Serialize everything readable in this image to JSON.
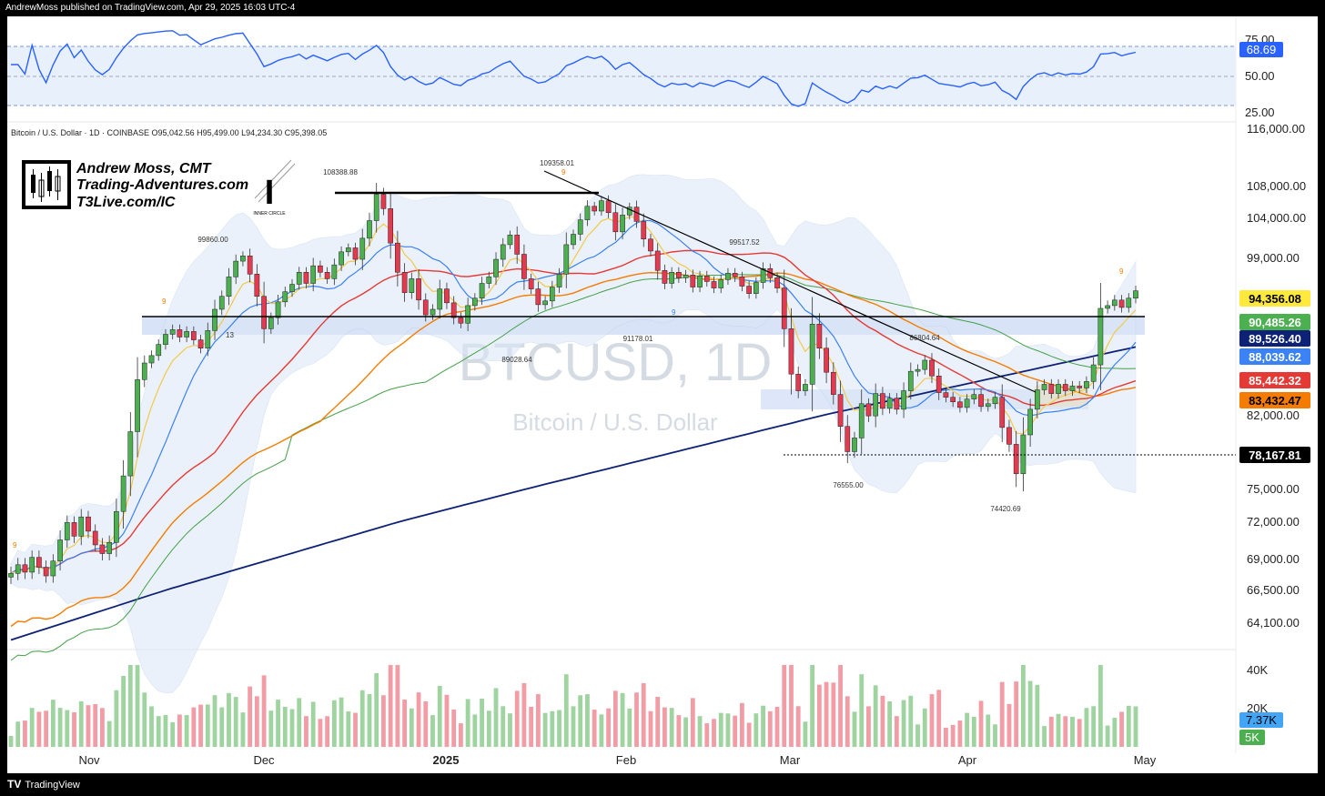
{
  "header": {
    "text": "AndrewMoss published on TradingView.com, Apr 29, 2025 16:03 UTC-4"
  },
  "footer": {
    "logo": "TV",
    "brand": "TradingView"
  },
  "branding": {
    "name": "Andrew Moss, CMT",
    "site": "Trading-Adventures.com",
    "site2": "T3Live.com/IC",
    "badge_letter": "I",
    "badge_text": "INNER CIRCLE"
  },
  "watermark": {
    "ticker": "BTCUSD, 1D",
    "name": "Bitcoin / U.S. Dollar"
  },
  "legend": {
    "text": "Bitcoin / U.S. Dollar · 1D · COINBASE   O95,042.56  H95,499.00  L94,234.30  C95,398.05"
  },
  "chart_data": {
    "type": "candlestick",
    "price_axis_ticks": [
      "116,000.00",
      "108,000.00",
      "104,000.00",
      "99,000.00",
      "82,000.00",
      "75,000.00",
      "72,000.00",
      "69,000.00",
      "66,500.00",
      "64,100.00"
    ],
    "rsi_axis_ticks": [
      "75.00",
      "50.00",
      "25.00"
    ],
    "volume_axis_ticks": [
      "40K",
      "20K"
    ],
    "x_labels": [
      "Nov",
      "Dec",
      "2025",
      "Feb",
      "Mar",
      "Apr",
      "May"
    ],
    "annotations": [
      "108388.88",
      "109358.01",
      "99860.00",
      "99517.52",
      "89028.64",
      "91178.01",
      "86804.64",
      "76555.00",
      "74420.69"
    ],
    "td_counts": [
      "9",
      "9",
      "9",
      "9",
      "13",
      "9",
      "9"
    ],
    "price_badges": [
      {
        "value": "94,356.08",
        "bg": "#ffe93d",
        "fg": "#000000"
      },
      {
        "value": "90,485.26",
        "bg": "#4caf50",
        "fg": "#ffffff"
      },
      {
        "value": "89,526.40",
        "bg": "#0d2275",
        "fg": "#ffffff"
      },
      {
        "value": "88,039.62",
        "bg": "#3b82f6",
        "fg": "#ffffff"
      },
      {
        "value": "85,442.32",
        "bg": "#e53935",
        "fg": "#ffffff"
      },
      {
        "value": "83,432.47",
        "bg": "#f57c00",
        "fg": "#000000"
      },
      {
        "value": "78,167.81",
        "bg": "#000000",
        "fg": "#ffffff"
      }
    ],
    "rsi_badge": {
      "value": "68.69",
      "bg": "#2962ff",
      "fg": "#ffffff"
    },
    "volume_badges": [
      {
        "value": "7.37K",
        "bg": "#42a5f5",
        "fg": "#000000"
      },
      {
        "value": "5K",
        "bg": "#4caf50",
        "fg": "#ffffff"
      }
    ],
    "colors": {
      "up": "#4caf50",
      "down": "#e53950",
      "ema8": "#f2c94c",
      "sma20": "#3b82f6",
      "sma50": "#e53935",
      "sma100": "#43a047",
      "sma200": "#f57c00",
      "sma_long": "#0d2275",
      "rsi": "#2962ff"
    },
    "series_close": [
      67800,
      68500,
      67900,
      69100,
      68300,
      67600,
      68800,
      70500,
      71900,
      70800,
      72400,
      71200,
      70100,
      69400,
      70300,
      72900,
      76200,
      80400,
      85800,
      87600,
      88400,
      89600,
      90700,
      91200,
      90400,
      91000,
      90100,
      89200,
      91100,
      93400,
      94800,
      96900,
      98600,
      99200,
      97200,
      94800,
      91300,
      92500,
      94200,
      95300,
      96100,
      97400,
      96200,
      98100,
      97400,
      96700,
      98200,
      99700,
      100200,
      98800,
      101400,
      103600,
      106900,
      105100,
      100800,
      97400,
      95200,
      96700,
      94400,
      92800,
      93400,
      95600,
      94100,
      92500,
      91900,
      93800,
      94600,
      96200,
      96900,
      98800,
      100600,
      101800,
      99400,
      96700,
      95600,
      93900,
      94300,
      95800,
      97200,
      100600,
      101900,
      103700,
      105400,
      104800,
      106100,
      104600,
      102200,
      104300,
      105300,
      103500,
      101300,
      99800,
      97600,
      96200,
      97400,
      96800,
      97100,
      95800,
      97000,
      96400,
      95700,
      96600,
      97300,
      96900,
      95900,
      95100,
      96300,
      97800,
      96800,
      95700,
      91300,
      86400,
      84600,
      85300,
      91800,
      89200,
      86600,
      84200,
      80900,
      78500,
      79800,
      83200,
      81900,
      84300,
      82700,
      83800,
      82600,
      84600,
      86700,
      86900,
      87900,
      86200,
      84400,
      83900,
      83400,
      82800,
      83700,
      84200,
      82900,
      83200,
      83900,
      80800,
      79200,
      76400,
      80100,
      82600,
      84700,
      85300,
      84300,
      85300,
      84600,
      85100,
      84900,
      85600,
      87400,
      93500,
      93800,
      94400,
      93600,
      94600,
      95400
    ]
  }
}
